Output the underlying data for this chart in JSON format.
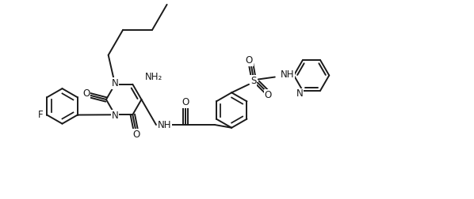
{
  "bg_color": "#ffffff",
  "line_color": "#1a1a1a",
  "line_width": 1.4,
  "font_size": 8.5,
  "figsize": [
    5.98,
    2.52
  ],
  "dpi": 100,
  "xlim": [
    0,
    13.5
  ],
  "ylim": [
    -0.5,
    5.5
  ]
}
